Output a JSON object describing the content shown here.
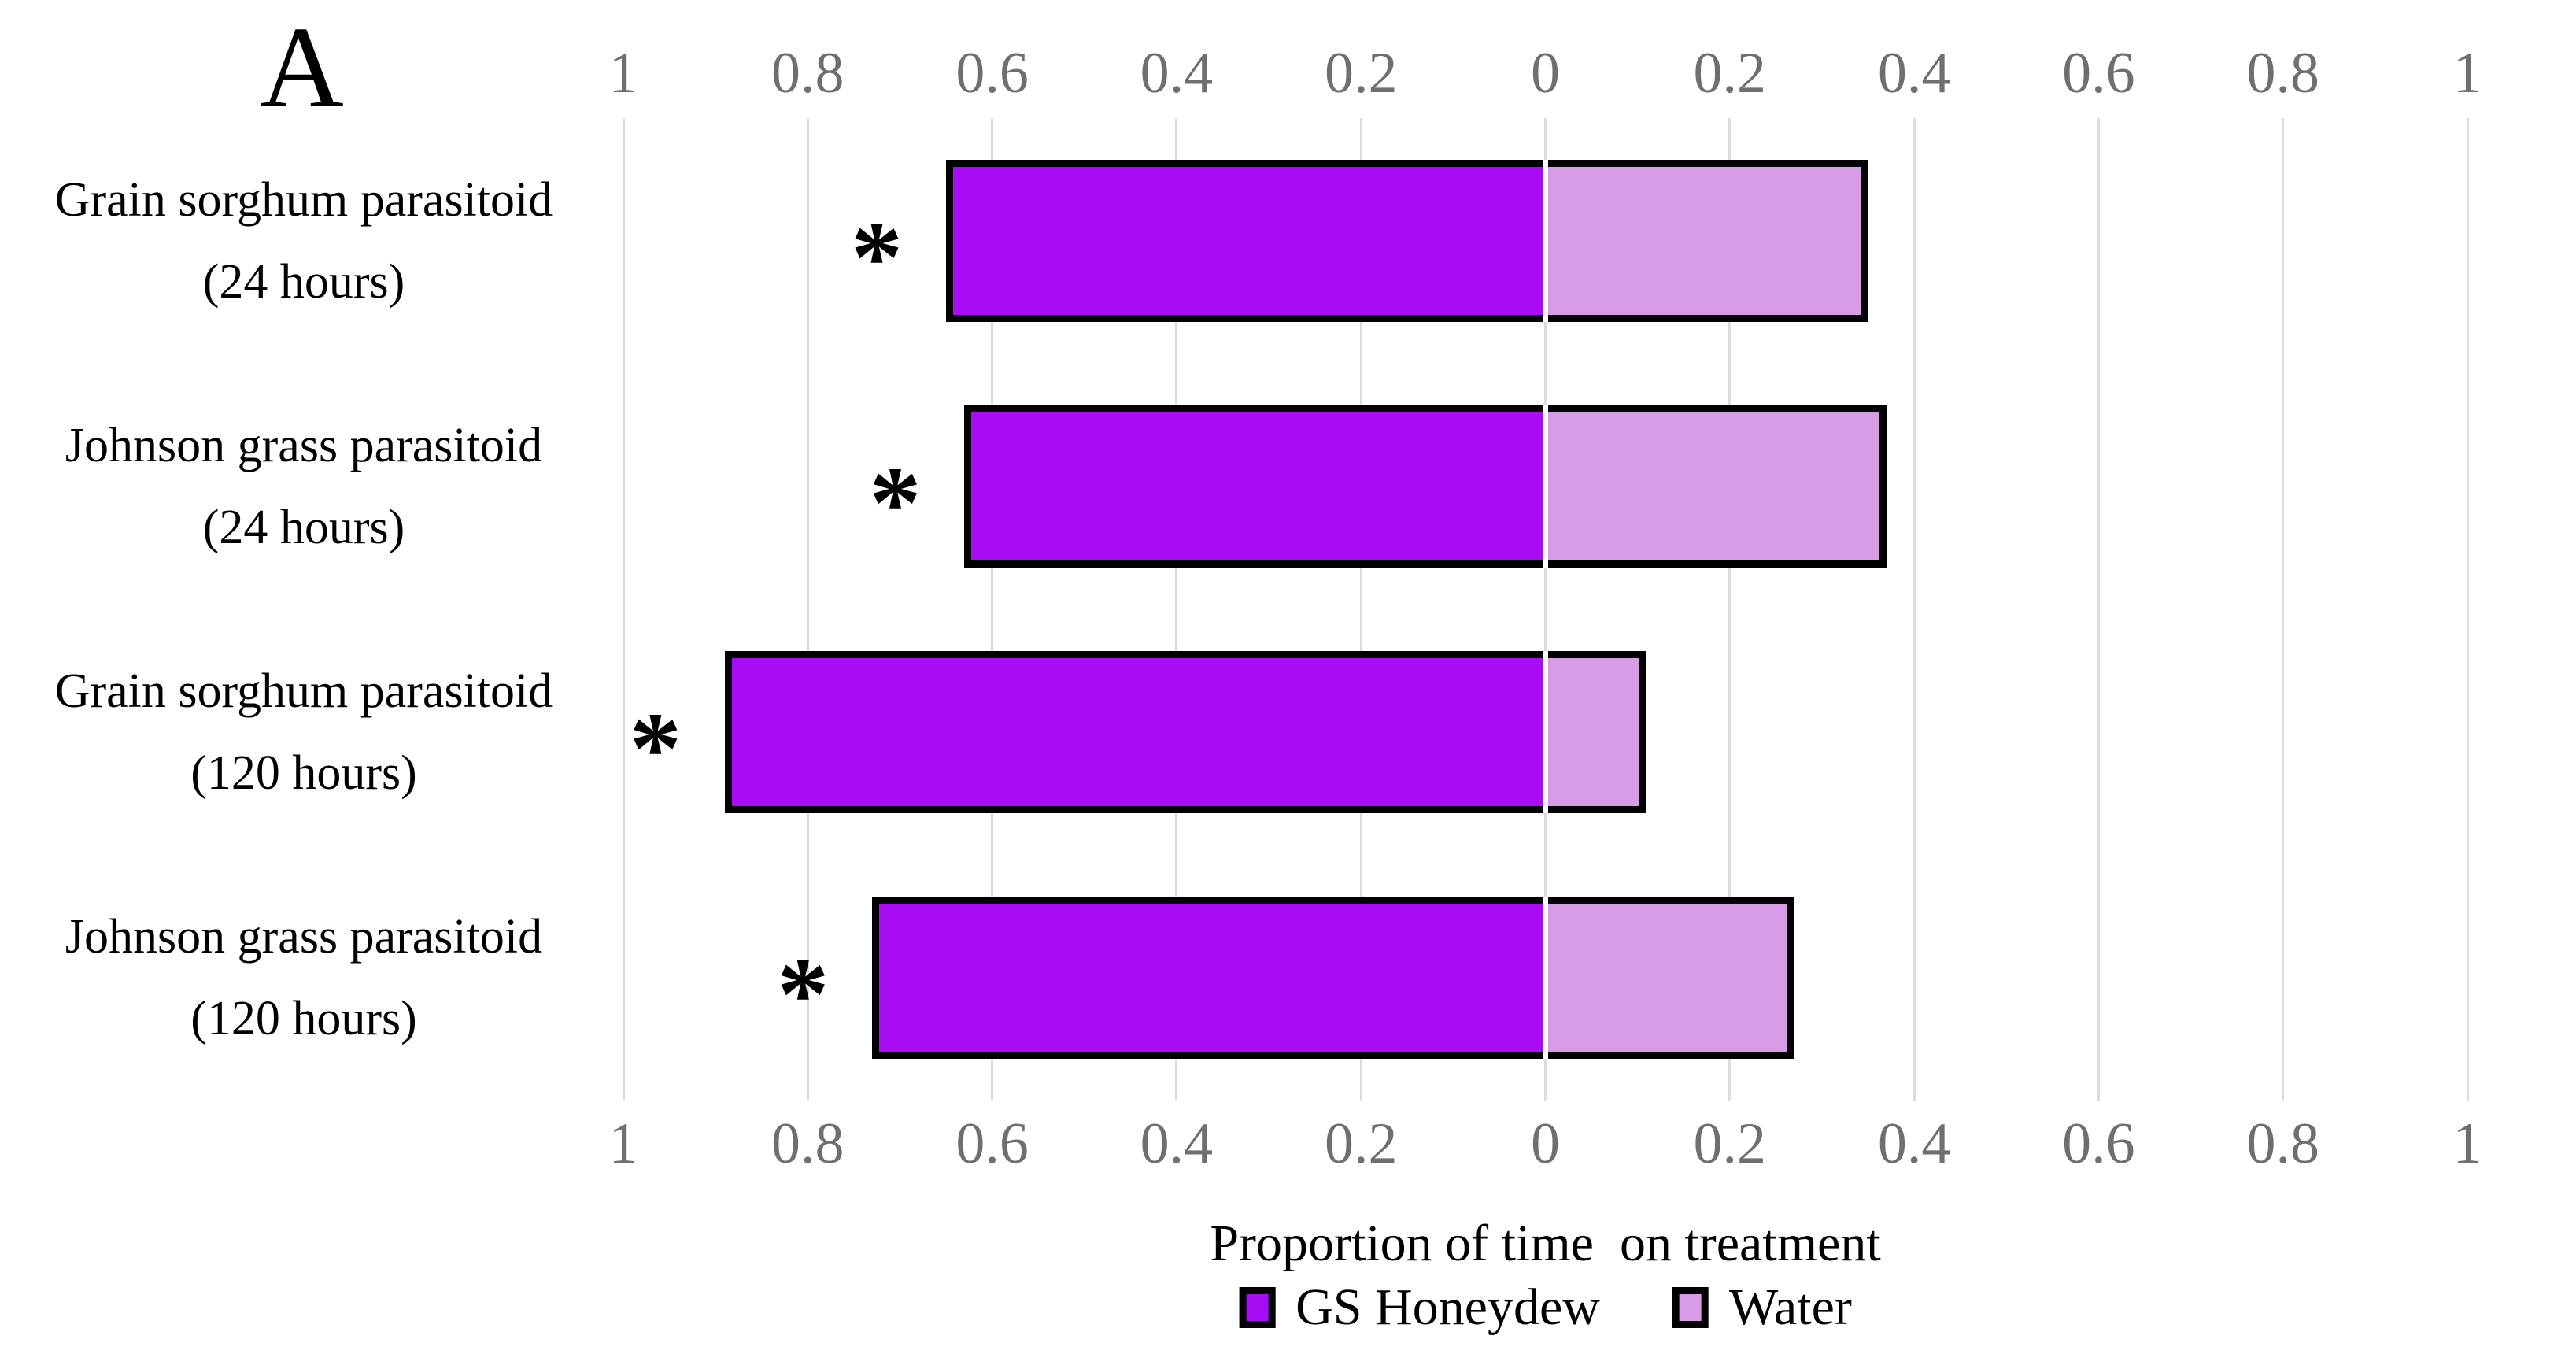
{
  "panel": {
    "label": "A"
  },
  "chart_data": {
    "type": "bar",
    "variant": "diverging-horizontal-stacked",
    "title": "A",
    "xlabel": "Proportion of time  on treatment",
    "ylabel": "",
    "grid": true,
    "legend_position": "bottom",
    "axis_tick_labels": [
      "1",
      "0.8",
      "0.6",
      "0.4",
      "0.2",
      "0",
      "0.2",
      "0.4",
      "0.6",
      "0.8",
      "1"
    ],
    "axis_range_left": [
      0,
      1
    ],
    "axis_range_right": [
      0,
      1
    ],
    "tick_step": 0.2,
    "categories": [
      {
        "line1": "Grain sorghum parasitoid",
        "line2": "(24 hours)"
      },
      {
        "line1": "Johnson grass parasitoid",
        "line2": "(24 hours)"
      },
      {
        "line1": "Grain sorghum parasitoid",
        "line2": "(120 hours)"
      },
      {
        "line1": "Johnson grass parasitoid",
        "line2": "(120 hours)"
      }
    ],
    "series": [
      {
        "name": "GS Honeydew",
        "side": "left",
        "color": "#A80DF5",
        "values": [
          0.65,
          0.63,
          0.89,
          0.73
        ]
      },
      {
        "name": "Water",
        "side": "right",
        "color": "#D89BE8",
        "values": [
          0.35,
          0.37,
          0.11,
          0.27
        ]
      }
    ],
    "significance_marker": "*",
    "significant_rows": [
      true,
      true,
      true,
      true
    ]
  },
  "colors": {
    "bar_border": "#000000",
    "gridline": "#dcdcdc",
    "tick_text": "#6f6f6f",
    "zero_separator": "#ffffff",
    "text": "#000000",
    "background": "#ffffff"
  }
}
